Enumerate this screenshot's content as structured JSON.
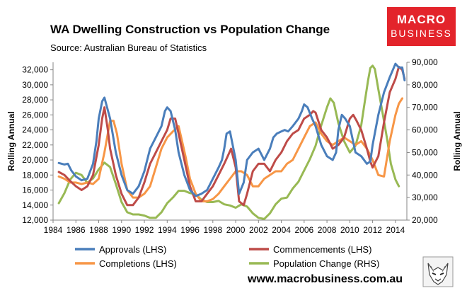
{
  "header": {
    "title": "WA Dwelling Construction vs Population Change",
    "subtitle": "Source: Australian Bureau of Statistics",
    "brand_line1": "MACRO",
    "brand_line2": "BUSINESS"
  },
  "footer": {
    "website": "www.macrobusiness.com.au"
  },
  "colors": {
    "approvals": "#4a7ebb",
    "commencements": "#be4b48",
    "completions": "#f79646",
    "population": "#98b954",
    "brand": "#e3242b"
  },
  "chart_data": {
    "type": "line",
    "title": "WA Dwelling Construction vs Population Change",
    "subtitle": "Source: Australian Bureau of Statistics",
    "xlabel": "",
    "ylabel": "Rolling Annual",
    "y2label": "Rolling Annual",
    "xlim": [
      1984,
      2015
    ],
    "ylim": [
      12000,
      33000
    ],
    "y2lim": [
      20000,
      90000
    ],
    "x_ticks": [
      1984,
      1986,
      1988,
      1990,
      1992,
      1994,
      1996,
      1998,
      2000,
      2002,
      2004,
      2006,
      2008,
      2010,
      2012,
      2014
    ],
    "y_ticks": [
      12000,
      14000,
      16000,
      18000,
      20000,
      22000,
      24000,
      26000,
      28000,
      30000,
      32000
    ],
    "y2_ticks": [
      20000,
      30000,
      40000,
      50000,
      60000,
      70000,
      80000,
      90000
    ],
    "x_tick_labels": [
      "1984",
      "1986",
      "1988",
      "1990",
      "1992",
      "1994",
      "1996",
      "1998",
      "2000",
      "2002",
      "2004",
      "2006",
      "2008",
      "2010",
      "2012",
      "2014"
    ],
    "y_tick_labels": [
      "12,000",
      "14,000",
      "16,000",
      "18,000",
      "20,000",
      "22,000",
      "24,000",
      "26,000",
      "28,000",
      "30,000",
      "32,000"
    ],
    "y2_tick_labels": [
      "20,000",
      "30,000",
      "40,000",
      "50,000",
      "60,000",
      "70,000",
      "80,000",
      "90,000"
    ],
    "grid": false,
    "legend_position": "bottom",
    "series": [
      {
        "name": "Approvals (LHS)",
        "axis": "left",
        "color": "#4a7ebb",
        "x": [
          1984.5,
          1985.0,
          1985.3,
          1985.6,
          1986.0,
          1986.5,
          1987.0,
          1987.5,
          1987.8,
          1988.0,
          1988.3,
          1988.5,
          1989.0,
          1989.5,
          1990.0,
          1990.5,
          1991.0,
          1991.5,
          1992.0,
          1992.5,
          1993.0,
          1993.5,
          1993.8,
          1994.0,
          1994.3,
          1994.7,
          1995.0,
          1995.5,
          1996.0,
          1996.5,
          1997.0,
          1997.5,
          1998.0,
          1998.5,
          1998.8,
          1999.0,
          1999.2,
          1999.5,
          2000.0,
          2000.3,
          2000.7,
          2001.0,
          2001.5,
          2002.0,
          2002.5,
          2003.0,
          2003.3,
          2003.6,
          2004.0,
          2004.3,
          2004.6,
          2005.0,
          2005.5,
          2005.8,
          2006.0,
          2006.3,
          2006.7,
          2007.0,
          2007.5,
          2008.0,
          2008.5,
          2008.8,
          2009.0,
          2009.3,
          2009.6,
          2010.0,
          2010.5,
          2011.0,
          2011.5,
          2011.8,
          2012.0,
          2012.5,
          2013.0,
          2013.5,
          2014.0,
          2014.3,
          2014.6,
          2014.8
        ],
        "values": [
          19600,
          19400,
          19500,
          18600,
          17800,
          17300,
          17500,
          19500,
          22500,
          25500,
          27800,
          28300,
          25500,
          21000,
          18000,
          16000,
          15500,
          16500,
          18500,
          21500,
          23000,
          24500,
          26500,
          27000,
          26500,
          24000,
          21000,
          18000,
          16000,
          15200,
          15500,
          16000,
          17500,
          19000,
          20000,
          21500,
          23500,
          23800,
          20000,
          15500,
          17000,
          20000,
          21000,
          21500,
          20000,
          21500,
          23000,
          23500,
          23800,
          24000,
          23800,
          24500,
          25500,
          26500,
          27400,
          27000,
          25500,
          24500,
          22000,
          20500,
          20000,
          21000,
          24000,
          26000,
          25500,
          24500,
          21000,
          20500,
          19500,
          19800,
          22000,
          26000,
          29000,
          31000,
          32800,
          32300,
          32300,
          30600
        ]
      },
      {
        "name": "Commencements (LHS)",
        "axis": "left",
        "color": "#be4b48",
        "x": [
          1984.5,
          1985.0,
          1985.5,
          1986.0,
          1986.5,
          1987.0,
          1987.5,
          1988.0,
          1988.3,
          1988.5,
          1988.8,
          1989.0,
          1989.5,
          1990.0,
          1990.5,
          1991.0,
          1991.5,
          1992.0,
          1992.5,
          1993.0,
          1993.5,
          1994.0,
          1994.3,
          1994.7,
          1995.0,
          1995.5,
          1996.0,
          1996.5,
          1997.0,
          1997.5,
          1998.0,
          1998.5,
          1999.0,
          1999.3,
          1999.6,
          2000.0,
          2000.3,
          2000.7,
          2001.0,
          2001.5,
          2002.0,
          2002.5,
          2003.0,
          2003.5,
          2004.0,
          2004.5,
          2005.0,
          2005.5,
          2006.0,
          2006.5,
          2006.8,
          2007.0,
          2007.5,
          2008.0,
          2008.5,
          2009.0,
          2009.5,
          2010.0,
          2010.3,
          2010.6,
          2011.0,
          2011.5,
          2011.8,
          2012.0,
          2012.5,
          2013.0,
          2013.5,
          2014.0,
          2014.3,
          2014.6,
          2014.8
        ],
        "values": [
          18400,
          18000,
          17200,
          16500,
          16000,
          16500,
          18000,
          22000,
          25500,
          27000,
          24000,
          21500,
          18000,
          15500,
          14000,
          14000,
          15000,
          17000,
          19500,
          21000,
          22500,
          24000,
          25500,
          25500,
          23500,
          20000,
          16500,
          14500,
          14500,
          15500,
          16500,
          18000,
          19500,
          20500,
          21500,
          19000,
          14500,
          14000,
          15500,
          18500,
          19500,
          19500,
          18500,
          20000,
          21000,
          22500,
          23500,
          24000,
          25500,
          26000,
          26500,
          26300,
          24000,
          23000,
          21500,
          22000,
          23000,
          25500,
          26000,
          25200,
          24000,
          21500,
          19800,
          19000,
          20500,
          25000,
          29000,
          30800,
          32400,
          32000,
          30800
        ]
      },
      {
        "name": "Completions (LHS)",
        "axis": "left",
        "color": "#f79646",
        "x": [
          1984.5,
          1985.0,
          1985.5,
          1986.0,
          1986.5,
          1987.0,
          1987.5,
          1988.0,
          1988.5,
          1989.0,
          1989.3,
          1989.6,
          1990.0,
          1990.5,
          1991.0,
          1991.5,
          1992.0,
          1992.5,
          1993.0,
          1993.5,
          1994.0,
          1994.5,
          1995.0,
          1995.3,
          1995.6,
          1996.0,
          1996.5,
          1997.0,
          1997.5,
          1998.0,
          1998.5,
          1999.0,
          1999.5,
          2000.0,
          2000.5,
          2001.0,
          2001.5,
          2002.0,
          2002.5,
          2003.0,
          2003.5,
          2004.0,
          2004.5,
          2005.0,
          2005.5,
          2006.0,
          2006.5,
          2007.0,
          2007.5,
          2008.0,
          2008.5,
          2009.0,
          2009.5,
          2010.0,
          2010.5,
          2011.0,
          2011.5,
          2012.0,
          2012.5,
          2013.0,
          2013.5,
          2014.0,
          2014.3,
          2014.6
        ],
        "values": [
          17800,
          17500,
          17000,
          17000,
          16800,
          17000,
          16800,
          17500,
          21000,
          25200,
          25200,
          23500,
          19500,
          16000,
          15000,
          15000,
          15500,
          16500,
          19000,
          21500,
          23000,
          23800,
          24500,
          22500,
          20500,
          17500,
          15500,
          14500,
          14500,
          14800,
          15500,
          16500,
          17500,
          18500,
          18500,
          18000,
          16500,
          16500,
          17500,
          18000,
          18500,
          18500,
          19500,
          20000,
          21500,
          23000,
          24500,
          25000,
          23500,
          22500,
          22000,
          22500,
          23000,
          22500,
          22000,
          22500,
          21500,
          20000,
          18000,
          17800,
          22500,
          26000,
          27500,
          28200
        ]
      },
      {
        "name": "Population Change (RHS)",
        "axis": "right",
        "color": "#98b954",
        "x": [
          1984.5,
          1985.0,
          1985.5,
          1986.0,
          1986.5,
          1987.0,
          1987.5,
          1988.0,
          1988.5,
          1989.0,
          1989.5,
          1990.0,
          1990.5,
          1991.0,
          1991.5,
          1992.0,
          1992.5,
          1993.0,
          1993.5,
          1994.0,
          1994.5,
          1995.0,
          1995.5,
          1996.0,
          1996.5,
          1997.0,
          1997.5,
          1998.0,
          1998.5,
          1999.0,
          1999.5,
          2000.0,
          2000.5,
          2001.0,
          2001.5,
          2002.0,
          2002.5,
          2003.0,
          2003.5,
          2004.0,
          2004.5,
          2005.0,
          2005.5,
          2006.0,
          2006.5,
          2007.0,
          2007.5,
          2008.0,
          2008.3,
          2008.6,
          2009.0,
          2009.5,
          2010.0,
          2010.5,
          2011.0,
          2011.3,
          2011.6,
          2011.8,
          2012.0,
          2012.2,
          2012.5,
          2013.0,
          2013.3,
          2013.6,
          2014.0,
          2014.3
        ],
        "values": [
          27500,
          32000,
          38000,
          41000,
          40000,
          36500,
          38500,
          42500,
          45500,
          43500,
          36000,
          28000,
          23500,
          22500,
          22500,
          22000,
          21000,
          21000,
          23500,
          27500,
          30000,
          33000,
          33000,
          32000,
          31500,
          29000,
          28000,
          28000,
          28500,
          27000,
          26500,
          25500,
          27000,
          26000,
          23000,
          21000,
          20500,
          23000,
          27000,
          29500,
          30000,
          34000,
          37000,
          42000,
          47000,
          53000,
          62000,
          70000,
          74000,
          72000,
          63000,
          55000,
          50000,
          53000,
          62000,
          72000,
          82000,
          87500,
          88500,
          87000,
          78000,
          64000,
          55000,
          45000,
          38000,
          35000
        ]
      }
    ]
  }
}
